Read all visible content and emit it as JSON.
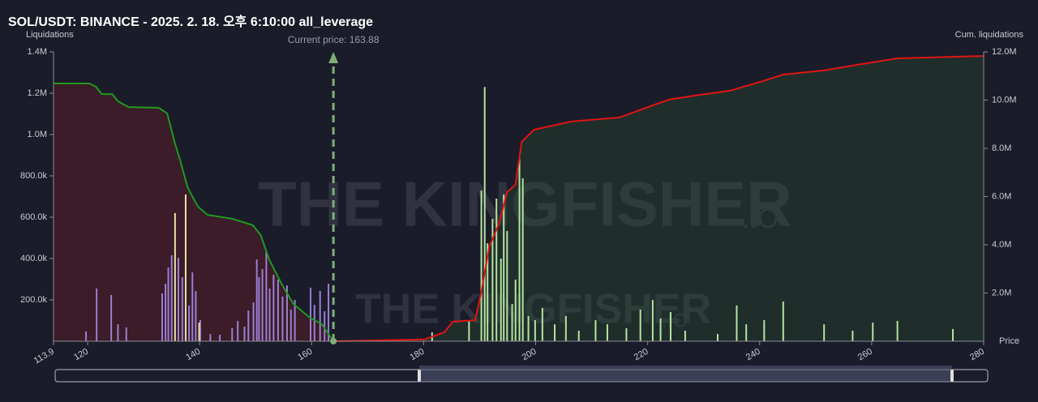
{
  "chart_data": {
    "type": "bar",
    "title": "SOL/USDT: BINANCE - 2025. 2. 18. 오후 6:10:00 all_leverage",
    "y_label": "Liquidations",
    "y2_label": "Cum. liquidations",
    "x_label": "Price",
    "watermark": "THE KINGFISHER",
    "watermark_suffix": ".IO",
    "current_price": {
      "label": "Current price: 163.88",
      "value": 163.88,
      "color": "#7fae7a"
    },
    "xlim": [
      113.9,
      280
    ],
    "xticks": [
      113.9,
      120,
      140,
      160,
      180,
      200,
      220,
      240,
      260,
      280
    ],
    "ylim": [
      0,
      1400000
    ],
    "yticks": [
      {
        "value": 200000,
        "label": "200.0k"
      },
      {
        "value": 400000,
        "label": "400.0k"
      },
      {
        "value": 600000,
        "label": "600.0k"
      },
      {
        "value": 800000,
        "label": "800.0k"
      },
      {
        "value": 1000000,
        "label": "1.0M"
      },
      {
        "value": 1200000,
        "label": "1.2M"
      },
      {
        "value": 1400000,
        "label": "1.4M"
      }
    ],
    "y2lim": [
      0,
      12000000
    ],
    "y2ticks": [
      {
        "value": 2000000,
        "label": "2.0M"
      },
      {
        "value": 4000000,
        "label": "4.0M"
      },
      {
        "value": 6000000,
        "label": "6.0M"
      },
      {
        "value": 8000000,
        "label": "8.0M"
      },
      {
        "value": 10000000,
        "label": "10.0M"
      },
      {
        "value": 12000000,
        "label": "12.0M"
      }
    ],
    "series": [
      {
        "type": "bar",
        "color": "#9b7fd4",
        "x": [
          119.7,
          121.6,
          124.2,
          125.4,
          126.9,
          133.3,
          133.9,
          134.4,
          135.0,
          136.2,
          136.9,
          138.1,
          138.7,
          139.3,
          140.1,
          141.9,
          143.6,
          145.8,
          146.8,
          148.0,
          148.7,
          149.6,
          150.2,
          150.6,
          151.2,
          151.9,
          152.5,
          153.2,
          154.0,
          154.8,
          155.6,
          156.3,
          157.0,
          159.8,
          160.5,
          161.5,
          162.3,
          163.0
        ],
        "values": [
          47000,
          255000,
          224000,
          82000,
          67000,
          231000,
          278000,
          357000,
          416000,
          404000,
          310000,
          173000,
          333000,
          243000,
          102000,
          35000,
          31000,
          63000,
          98000,
          71000,
          149000,
          188000,
          396000,
          310000,
          349000,
          435000,
          255000,
          322000,
          298000,
          216000,
          270000,
          153000,
          200000,
          259000,
          176000,
          243000,
          145000,
          278000
        ]
      },
      {
        "type": "bar",
        "color": "#e8e3a6",
        "x": [
          135.6,
          137.5,
          139.9
        ],
        "values": [
          620000,
          710000,
          90000
        ]
      },
      {
        "type": "bar",
        "color": "#b5e3a0",
        "x": [
          181.5,
          188.1,
          190.3,
          190.9,
          191.4,
          192.3,
          193.0,
          193.8,
          194.3,
          194.9,
          195.8,
          196.4,
          197.1,
          197.7,
          198.7,
          199.9,
          201.2,
          203.4,
          205.4,
          207.7,
          210.7,
          212.8,
          216.2,
          218.7,
          220.9,
          222.3,
          224.1,
          226.7,
          232.5,
          235.9,
          237.6,
          240.8,
          244.2,
          251.5,
          256.6,
          260.2,
          264.6,
          274.5
        ],
        "values": [
          43000,
          102000,
          729000,
          1230000,
          474000,
          592000,
          690000,
          400000,
          710000,
          533000,
          180000,
          298000,
          882000,
          788000,
          122000,
          102000,
          161000,
          82000,
          122000,
          51000,
          102000,
          82000,
          63000,
          153000,
          200000,
          110000,
          141000,
          51000,
          35000,
          173000,
          82000,
          102000,
          192000,
          82000,
          51000,
          90000,
          98000,
          59000
        ]
      },
      {
        "type": "line",
        "axis": "y2",
        "color": "#1e9a1e",
        "fill": "rgba(120,30,40,0.35)",
        "x": [
          113.9,
          120.3,
          121.5,
          122.5,
          124.4,
          125.4,
          127.3,
          132.7,
          134.2,
          135.5,
          136.6,
          137.8,
          138.5,
          139.7,
          141.4,
          145.8,
          149.5,
          150.9,
          152.4,
          154.6,
          156.7,
          159.7,
          161.8,
          163.88
        ],
        "values": [
          10690000,
          10690000,
          10550000,
          10250000,
          10250000,
          9950000,
          9710000,
          9680000,
          9450000,
          8270000,
          7430000,
          6420000,
          6080000,
          5580000,
          5240000,
          5080000,
          4810000,
          4400000,
          3390000,
          2390000,
          1550000,
          970000,
          710000,
          0
        ]
      },
      {
        "type": "line",
        "axis": "y2",
        "color": "#e01414",
        "fill": "rgba(40,80,50,0.35)",
        "x": [
          163.88,
          180.1,
          183.7,
          185.2,
          189.2,
          190.3,
          191.7,
          193.5,
          194.9,
          196.4,
          197.5,
          199.7,
          206.3,
          215.0,
          220.9,
          223.8,
          228.2,
          234.7,
          240.6,
          244.2,
          251.5,
          257.3,
          264.6,
          274.8,
          280
        ],
        "values": [
          0,
          70000,
          370000,
          810000,
          870000,
          2050000,
          3900000,
          4910000,
          6180000,
          6490000,
          8270000,
          8770000,
          9110000,
          9280000,
          9780000,
          10020000,
          10180000,
          10390000,
          10790000,
          11060000,
          11230000,
          11460000,
          11730000,
          11800000,
          11830000
        ]
      }
    ]
  }
}
